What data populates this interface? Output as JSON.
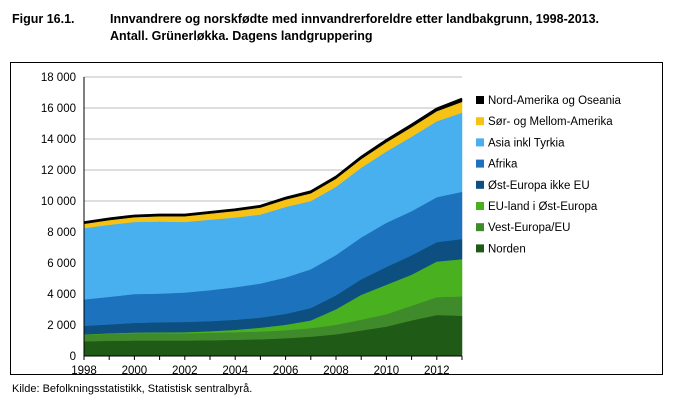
{
  "header": {
    "figure_label": "Figur 16.1.",
    "title_line1": "Innvandrere og norskfødte med innvandrerforeldre etter landbakgrunn, 1998-2013.",
    "title_line2": "Antall. Grünerløkka. Dagens landgruppering"
  },
  "footer": {
    "source": "Kilde: Befolkningsstatistikk, Statistisk sentralbyrå."
  },
  "chart_data": {
    "type": "area",
    "stacked": true,
    "x": [
      1998,
      1999,
      2000,
      2001,
      2002,
      2003,
      2004,
      2005,
      2006,
      2007,
      2008,
      2009,
      2010,
      2011,
      2012,
      2013
    ],
    "xticks": [
      "1998",
      "2000",
      "2002",
      "2004",
      "2006",
      "2008",
      "2010",
      "2012"
    ],
    "xlim": [
      1998,
      2013
    ],
    "ylim": [
      0,
      18000
    ],
    "yticks": [
      "0",
      "2 000",
      "4 000",
      "6 000",
      "8 000",
      "10 000",
      "12 000",
      "14 000",
      "16 000",
      "18 000"
    ],
    "grid": "horizontal",
    "legend_position": "right",
    "series": [
      {
        "name": "Norden",
        "color": "#1f5a16",
        "values": [
          950,
          980,
          1000,
          1000,
          1000,
          1020,
          1050,
          1080,
          1150,
          1250,
          1400,
          1650,
          1900,
          2300,
          2650,
          2600
        ]
      },
      {
        "name": "Vest-Europa/EU",
        "color": "#3f8a2a",
        "values": [
          430,
          460,
          480,
          480,
          470,
          480,
          490,
          500,
          520,
          550,
          620,
          700,
          800,
          950,
          1150,
          1250
        ]
      },
      {
        "name": "EU-land i Øst-Europa",
        "color": "#49b020",
        "values": [
          20,
          30,
          40,
          50,
          70,
          100,
          150,
          250,
          350,
          500,
          1000,
          1600,
          1900,
          2000,
          2300,
          2400
        ]
      },
      {
        "name": "Øst-Europa ikke EU",
        "color": "#0d4f80",
        "values": [
          550,
          570,
          620,
          650,
          660,
          650,
          650,
          650,
          700,
          800,
          900,
          1000,
          1150,
          1250,
          1250,
          1300
        ]
      },
      {
        "name": "Afrika",
        "color": "#1c72bd",
        "values": [
          1700,
          1780,
          1860,
          1850,
          1900,
          2000,
          2100,
          2200,
          2350,
          2500,
          2600,
          2700,
          2850,
          2850,
          2900,
          3050
        ]
      },
      {
        "name": "Asia inkl Tyrkia",
        "color": "#48b0ee",
        "values": [
          4600,
          4650,
          4650,
          4650,
          4550,
          4550,
          4500,
          4450,
          4550,
          4400,
          4400,
          4500,
          4600,
          4800,
          4900,
          5100
        ]
      },
      {
        "name": "Sør- og Mellom-Amerika",
        "color": "#f6c315",
        "values": [
          280,
          300,
          310,
          340,
          370,
          390,
          420,
          450,
          480,
          500,
          520,
          560,
          590,
          620,
          650,
          700
        ]
      },
      {
        "name": "Nord-Amerika og Oseania",
        "color": "#000000",
        "values": [
          100,
          100,
          100,
          100,
          100,
          100,
          100,
          110,
          110,
          120,
          130,
          140,
          150,
          160,
          170,
          200
        ]
      }
    ]
  }
}
